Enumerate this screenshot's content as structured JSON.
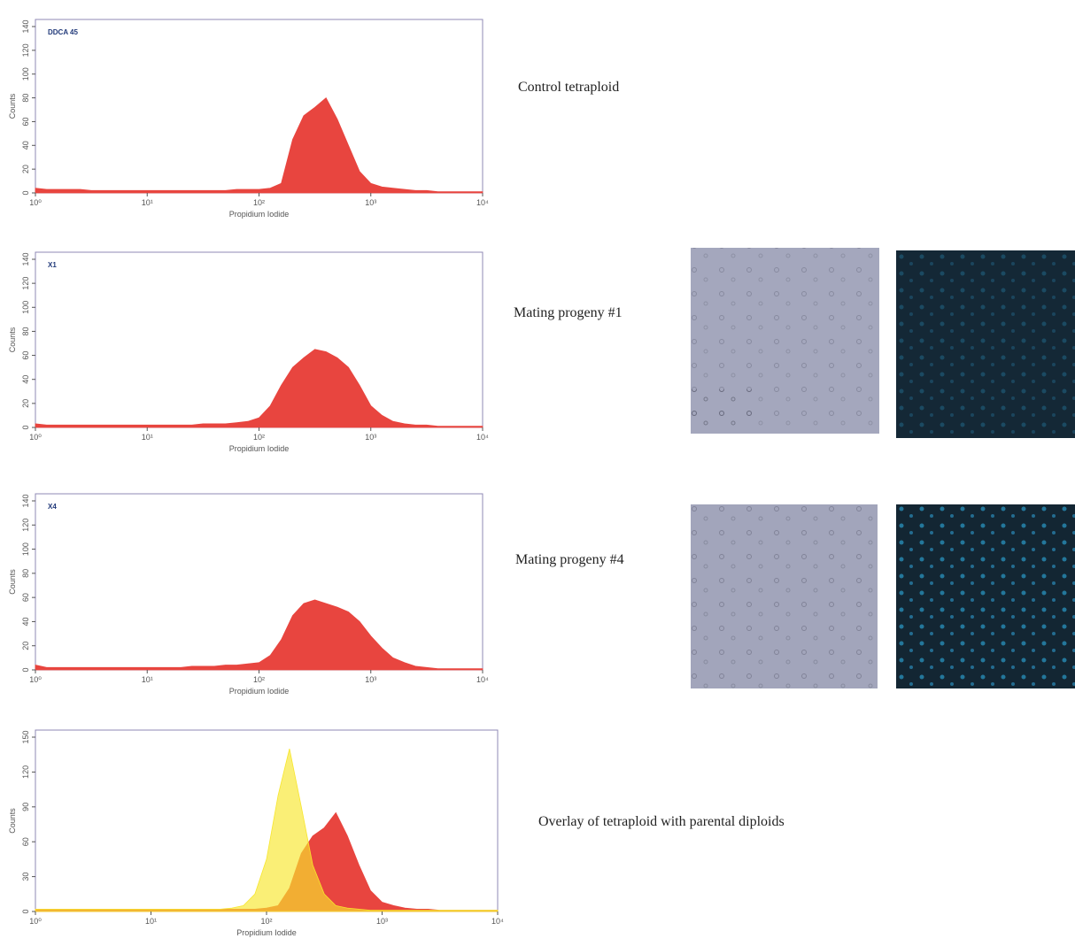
{
  "chart_data": [
    {
      "type": "area",
      "title": "DDCA 45",
      "caption": "Control tetraploid",
      "xlabel": "Propidium Iodide",
      "ylabel": "Counts",
      "xscale": "log",
      "color": "#e8453f",
      "x": [
        1,
        1.26,
        1.58,
        2,
        2.51,
        3.16,
        3.98,
        5.01,
        6.31,
        7.94,
        10,
        12.6,
        15.8,
        20,
        25.1,
        31.6,
        39.8,
        50.1,
        63.1,
        79.4,
        100,
        126,
        158,
        200,
        251,
        316,
        398,
        501,
        631,
        794,
        1000,
        1260,
        1580,
        2000,
        2510,
        3160,
        3980,
        5010,
        6310,
        7940,
        10000
      ],
      "values": [
        4,
        3,
        3,
        3,
        3,
        2,
        2,
        2,
        2,
        2,
        2,
        2,
        2,
        2,
        2,
        2,
        2,
        2,
        3,
        3,
        3,
        4,
        8,
        45,
        65,
        72,
        80,
        62,
        40,
        18,
        8,
        5,
        4,
        3,
        2,
        2,
        1,
        1,
        1,
        1,
        1
      ],
      "xlim": [
        1,
        10000
      ],
      "xticks": [
        {
          "value": 1,
          "label": "10⁰"
        },
        {
          "value": 10,
          "label": "10¹"
        },
        {
          "value": 100,
          "label": "10²"
        },
        {
          "value": 1000,
          "label": "10³"
        },
        {
          "value": 10000,
          "label": "10⁴"
        }
      ],
      "ylim": [
        0,
        140
      ],
      "yticks": [
        0,
        20,
        40,
        60,
        80,
        100,
        120,
        140
      ]
    },
    {
      "type": "area",
      "title": "X1",
      "caption": "Mating progeny #1",
      "xlabel": "Propidium Iodide",
      "ylabel": "Counts",
      "xscale": "log",
      "color": "#e8453f",
      "x": [
        1,
        1.26,
        1.58,
        2,
        2.51,
        3.16,
        3.98,
        5.01,
        6.31,
        7.94,
        10,
        12.6,
        15.8,
        20,
        25.1,
        31.6,
        39.8,
        50.1,
        63.1,
        79.4,
        100,
        126,
        158,
        200,
        251,
        316,
        398,
        501,
        631,
        794,
        1000,
        1260,
        1580,
        2000,
        2510,
        3160,
        3980,
        5010,
        6310,
        7940,
        10000
      ],
      "values": [
        3,
        2,
        2,
        2,
        2,
        2,
        2,
        2,
        2,
        2,
        2,
        2,
        2,
        2,
        2,
        3,
        3,
        3,
        4,
        5,
        8,
        18,
        35,
        50,
        58,
        65,
        63,
        58,
        50,
        35,
        18,
        10,
        5,
        3,
        2,
        2,
        1,
        1,
        1,
        1,
        1
      ],
      "xlim": [
        1,
        10000
      ],
      "xticks": [
        {
          "value": 1,
          "label": "10⁰"
        },
        {
          "value": 10,
          "label": "10¹"
        },
        {
          "value": 100,
          "label": "10²"
        },
        {
          "value": 1000,
          "label": "10³"
        },
        {
          "value": 10000,
          "label": "10⁴"
        }
      ],
      "ylim": [
        0,
        140
      ],
      "yticks": [
        0,
        20,
        40,
        60,
        80,
        100,
        120,
        140
      ]
    },
    {
      "type": "area",
      "title": "X4",
      "caption": "Mating progeny #4",
      "xlabel": "Propidium Iodide",
      "ylabel": "Counts",
      "xscale": "log",
      "color": "#e8453f",
      "x": [
        1,
        1.26,
        1.58,
        2,
        2.51,
        3.16,
        3.98,
        5.01,
        6.31,
        7.94,
        10,
        12.6,
        15.8,
        20,
        25.1,
        31.6,
        39.8,
        50.1,
        63.1,
        79.4,
        100,
        126,
        158,
        200,
        251,
        316,
        398,
        501,
        631,
        794,
        1000,
        1260,
        1580,
        2000,
        2510,
        3160,
        3980,
        5010,
        6310,
        7940,
        10000
      ],
      "values": [
        4,
        2,
        2,
        2,
        2,
        2,
        2,
        2,
        2,
        2,
        2,
        2,
        2,
        2,
        3,
        3,
        3,
        4,
        4,
        5,
        6,
        12,
        25,
        45,
        55,
        58,
        55,
        52,
        48,
        40,
        28,
        18,
        10,
        6,
        3,
        2,
        1,
        1,
        1,
        1,
        1
      ],
      "xlim": [
        1,
        10000
      ],
      "xticks": [
        {
          "value": 1,
          "label": "10⁰"
        },
        {
          "value": 10,
          "label": "10¹"
        },
        {
          "value": 100,
          "label": "10²"
        },
        {
          "value": 1000,
          "label": "10³"
        },
        {
          "value": 10000,
          "label": "10⁴"
        }
      ],
      "ylim": [
        0,
        140
      ],
      "yticks": [
        0,
        20,
        40,
        60,
        80,
        100,
        120,
        140
      ]
    },
    {
      "type": "area",
      "caption": "Overlay of tetraploid with parental diploids",
      "xlabel": "Propidium Iodide",
      "ylabel": "Counts",
      "xscale": "log",
      "x": [
        1,
        1.26,
        1.58,
        2,
        2.51,
        3.16,
        3.98,
        5.01,
        6.31,
        7.94,
        10,
        12.6,
        15.8,
        20,
        25.1,
        31.6,
        39.8,
        50.1,
        63.1,
        79.4,
        100,
        126,
        158,
        200,
        251,
        316,
        398,
        501,
        631,
        794,
        1000,
        1260,
        1580,
        2000,
        2510,
        3160,
        3980,
        5010,
        6310,
        7940,
        10000
      ],
      "series": [
        {
          "color": "#e8453f",
          "values": [
            2,
            2,
            2,
            2,
            2,
            2,
            2,
            2,
            2,
            2,
            2,
            2,
            2,
            2,
            2,
            2,
            2,
            2,
            2,
            2,
            3,
            5,
            20,
            50,
            65,
            72,
            85,
            65,
            40,
            18,
            8,
            5,
            3,
            2,
            2,
            1,
            1,
            1,
            1,
            1,
            1
          ]
        },
        {
          "color": "#f7e62c",
          "opacity": 0.65,
          "values": [
            2,
            2,
            2,
            2,
            2,
            2,
            2,
            2,
            2,
            2,
            2,
            2,
            2,
            2,
            2,
            2,
            2,
            3,
            5,
            15,
            45,
            100,
            140,
            90,
            40,
            15,
            5,
            3,
            2,
            1,
            1,
            1,
            1,
            1,
            1,
            1,
            1,
            1,
            1,
            1,
            1
          ]
        }
      ],
      "xlim": [
        1,
        10000
      ],
      "xticks": [
        {
          "value": 1,
          "label": "10⁰"
        },
        {
          "value": 10,
          "label": "10¹"
        },
        {
          "value": 100,
          "label": "10²"
        },
        {
          "value": 1000,
          "label": "10³"
        },
        {
          "value": 10000,
          "label": "10⁴"
        }
      ],
      "ylim": [
        0,
        150
      ],
      "yticks": [
        0,
        30,
        60,
        90,
        120,
        150
      ]
    }
  ]
}
